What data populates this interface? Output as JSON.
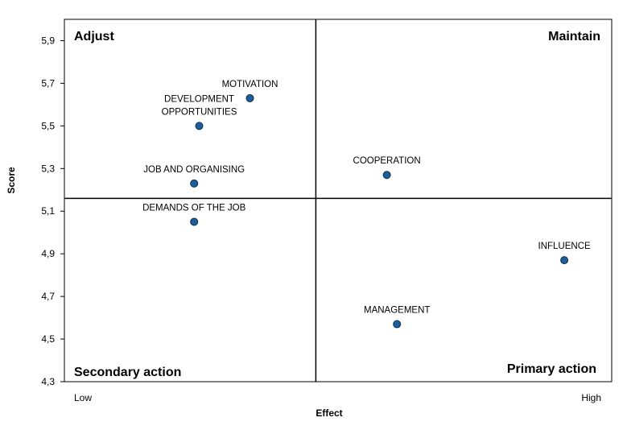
{
  "chart_data": {
    "type": "scatter",
    "xlabel": "Effect",
    "ylabel": "Score",
    "x_end_labels": {
      "low": "Low",
      "high": "High"
    },
    "xlim": [
      0,
      100
    ],
    "ylim": [
      4.3,
      6.0
    ],
    "y_ticks": [
      "4,3",
      "4,5",
      "4,7",
      "4,9",
      "5,1",
      "5,3",
      "5,5",
      "5,7",
      "5,9"
    ],
    "y_tick_values": [
      4.3,
      4.5,
      4.7,
      4.9,
      5.1,
      5.3,
      5.5,
      5.7,
      5.9
    ],
    "divider": {
      "x": 48,
      "y": 5.16
    },
    "quadrants": {
      "top_left": "Adjust",
      "top_right": "Maintain",
      "bottom_left": "Secondary action",
      "bottom_right": "Primary action"
    },
    "points": [
      {
        "label": "MOTIVATION",
        "x": 35,
        "y": 5.63
      },
      {
        "label": "DEVELOPMENT OPPORTUNITIES",
        "label_lines": [
          "DEVELOPMENT",
          "OPPORTUNITIES"
        ],
        "x": 25,
        "y": 5.5
      },
      {
        "label": "JOB AND ORGANISING",
        "x": 24,
        "y": 5.23
      },
      {
        "label": "DEMANDS OF THE JOB",
        "x": 24,
        "y": 5.05
      },
      {
        "label": "COOPERATION",
        "x": 62,
        "y": 5.27
      },
      {
        "label": "INFLUENCE",
        "x": 97,
        "y": 4.87
      },
      {
        "label": "MANAGEMENT",
        "x": 64,
        "y": 4.57
      }
    ],
    "grid": false,
    "legend": "none",
    "marker_color": "#1f5f99",
    "marker_edge_color": "#0d2d4d",
    "frame_color": "#000000"
  }
}
